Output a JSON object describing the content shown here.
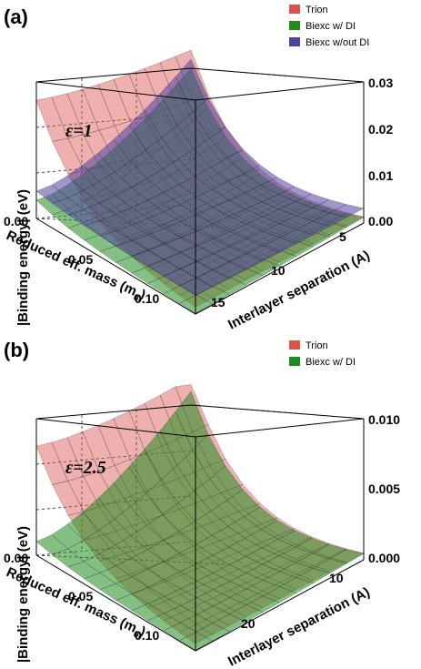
{
  "panels": [
    {
      "label": "(a)",
      "annotation": "ε=1",
      "legend": [
        {
          "name": "Trion",
          "color": "#d9534f"
        },
        {
          "name": "Biexc w/ DI",
          "color": "#1f8a1f"
        },
        {
          "name": "Biexc w/out DI",
          "color": "#5040a0"
        }
      ]
    },
    {
      "label": "(b)",
      "annotation": "ε=2.5",
      "legend": [
        {
          "name": "Trion",
          "color": "#d9534f"
        },
        {
          "name": "Biexc w/ DI",
          "color": "#1f8a1f"
        }
      ]
    }
  ],
  "chart_data": [
    {
      "type": "surface",
      "panel": "(a)",
      "xlabel": "Reduced eff. mass (m",
      "xlabel_sub": "0",
      "xlabel_end": ")",
      "ylabel": "Interlayer separation (A)",
      "zlabel": "|Binding energy| (eV)",
      "x_ticks": [
        "0.00",
        "0.05",
        "0.10"
      ],
      "y_ticks": [
        "5",
        "10",
        "15"
      ],
      "z_ticks": [
        "0.00",
        "0.01",
        "0.02",
        "0.03"
      ],
      "xlim": [
        0,
        0.13
      ],
      "ylim": [
        0,
        20
      ],
      "zlim": [
        0,
        0.03
      ],
      "series": [
        {
          "name": "Trion",
          "color": "#d9534f",
          "corners": [
            0.026,
            0.034,
            0.0005,
            0.0
          ]
        },
        {
          "name": "Biexc w/ DI",
          "color": "#1f8a1f",
          "corners": [
            0.004,
            0.03,
            0.0,
            0.0
          ]
        },
        {
          "name": "Biexc w/out DI",
          "color": "#5040a0",
          "corners": [
            0.006,
            0.032,
            0.004,
            0.002
          ]
        }
      ]
    },
    {
      "type": "surface",
      "panel": "(b)",
      "xlabel": "Reduced eff. mass (m",
      "xlabel_sub": "0",
      "xlabel_end": ")",
      "ylabel": "Interlayer separation (A)",
      "zlabel": "|Binding energy| (eV)",
      "x_ticks": [
        "0.00",
        "0.05",
        "0.10"
      ],
      "y_ticks": [
        "10",
        "20"
      ],
      "z_ticks": [
        "0.000",
        "0.005",
        "0.010"
      ],
      "xlim": [
        0,
        0.13
      ],
      "ylim": [
        0,
        30
      ],
      "zlim": [
        0,
        0.01
      ],
      "series": [
        {
          "name": "Trion",
          "color": "#d9534f",
          "corners": [
            0.008,
            0.012,
            0.0002,
            0.0
          ]
        },
        {
          "name": "Biexc w/ DI",
          "color": "#1f8a1f",
          "corners": [
            0.001,
            0.011,
            0.0,
            0.0
          ]
        }
      ]
    }
  ]
}
